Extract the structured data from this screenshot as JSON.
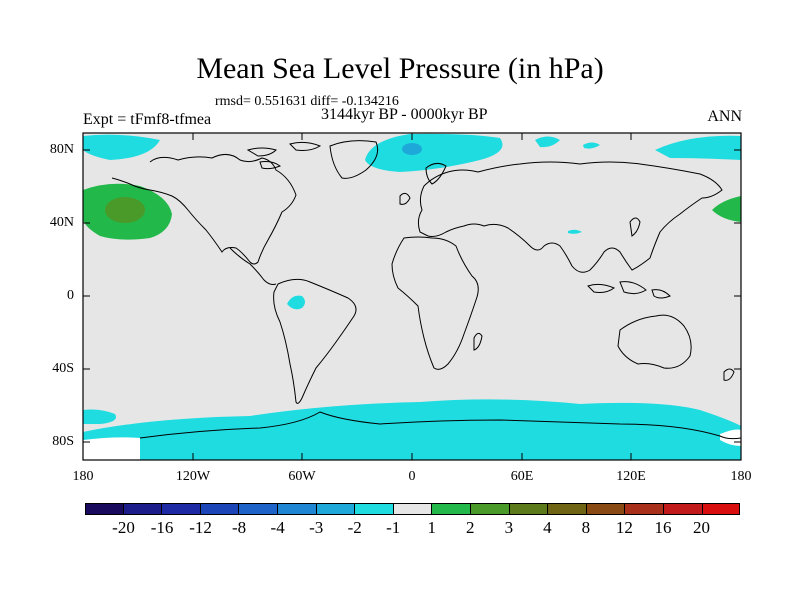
{
  "title": "Mean Sea Level Pressure (in hPa)",
  "stats": "rmsd= 0.551631 diff= -0.134216",
  "period": "3144kyr BP - 0000kyr BP",
  "experiment": "Expt = tFmf8-tfmea",
  "season": "ANN",
  "lat_labels": [
    "80N",
    "40N",
    "0",
    "40S",
    "80S"
  ],
  "lon_labels": [
    "180",
    "120W",
    "60W",
    "0",
    "60E",
    "120E",
    "180"
  ],
  "colorbar": {
    "labels": [
      "-20",
      "-16",
      "-12",
      "-8",
      "-4",
      "-3",
      "-2",
      "-1",
      "1",
      "2",
      "3",
      "4",
      "8",
      "12",
      "16",
      "20"
    ],
    "colors": [
      "#1a0a5e",
      "#1c1c8a",
      "#1e2aa3",
      "#1c45b8",
      "#1e64c8",
      "#1e86d2",
      "#1ea8da",
      "#1fdce0",
      "#e6e6e6",
      "#22b84a",
      "#4a9a2a",
      "#5c7a1a",
      "#6e6414",
      "#8a4a14",
      "#a8301a",
      "#c21a1a",
      "#d80d0d"
    ]
  },
  "fields": {
    "background": "#e6e6e6",
    "neg1": "#1fdce0",
    "neg2": "#1ea8da",
    "pos1": "#22b84a",
    "pos2": "#4a9a2a"
  }
}
